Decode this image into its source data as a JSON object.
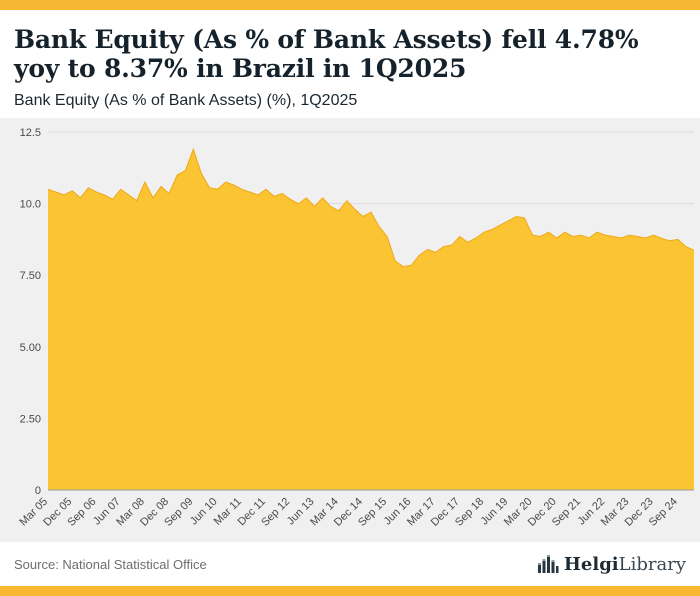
{
  "header": {
    "title": "Bank Equity (As % of Bank Assets) fell 4.78% yoy to 8.37% in Brazil in 1Q2025",
    "subtitle": "Bank Equity (As % of Bank Assets) (%), 1Q2025"
  },
  "footer": {
    "source": "Source: National Statistical Office",
    "logo_bold": "Helgi",
    "logo_light": "Library",
    "logo_icon": "bar-chart-building-icon"
  },
  "colors": {
    "accent_gold": "#F7B733",
    "area_fill": "#FAC433",
    "area_edge": "#EFA817",
    "chart_bg": "#F0F0F0",
    "grid": "#DCDCDC",
    "baseline": "#9A9A9A",
    "title_text": "#15222B",
    "axis_text": "#4A4A4A",
    "source_text": "#6E6E6E"
  },
  "chart_data": {
    "type": "area",
    "title": "Bank Equity (As % of Bank Assets) fell 4.78% yoy to 8.37% in Brazil in 1Q2025",
    "subtitle": "Bank Equity (As % of Bank Assets) (%), 1Q2025",
    "ylabel": "",
    "xlabel": "",
    "ylim": [
      0,
      12.5
    ],
    "yticks": [
      0,
      2.5,
      5,
      7.5,
      10,
      12.5
    ],
    "ytick_labels": [
      "0",
      "2.50",
      "5.00",
      "7.50",
      "10.0",
      "12.5"
    ],
    "grid": true,
    "legend": "none",
    "tick_every": 3,
    "x_ticks": [
      "Mar 05",
      "Dec 05",
      "Sep 06",
      "Jun 07",
      "Mar 08",
      "Dec 08",
      "Sep 09",
      "Jun 10",
      "Mar 11",
      "Dec 11",
      "Sep 12",
      "Jun 13",
      "Mar 14",
      "Dec 14",
      "Sep 15",
      "Jun 16",
      "Mar 17",
      "Dec 17",
      "Sep 18",
      "Jun 19",
      "Mar 20",
      "Dec 20",
      "Sep 21",
      "Jun 22",
      "Mar 23",
      "Dec 23",
      "Sep 24"
    ],
    "x_full": [
      "Mar 05",
      "Jun 05",
      "Sep 05",
      "Dec 05",
      "Mar 06",
      "Jun 06",
      "Sep 06",
      "Dec 06",
      "Mar 07",
      "Jun 07",
      "Sep 07",
      "Dec 07",
      "Mar 08",
      "Jun 08",
      "Sep 08",
      "Dec 08",
      "Mar 09",
      "Jun 09",
      "Sep 09",
      "Dec 09",
      "Mar 10",
      "Jun 10",
      "Sep 10",
      "Dec 10",
      "Mar 11",
      "Jun 11",
      "Sep 11",
      "Dec 11",
      "Mar 12",
      "Jun 12",
      "Sep 12",
      "Dec 12",
      "Mar 13",
      "Jun 13",
      "Sep 13",
      "Dec 13",
      "Mar 14",
      "Jun 14",
      "Sep 14",
      "Dec 14",
      "Mar 15",
      "Jun 15",
      "Sep 15",
      "Dec 15",
      "Mar 16",
      "Jun 16",
      "Sep 16",
      "Dec 16",
      "Mar 17",
      "Jun 17",
      "Sep 17",
      "Dec 17",
      "Mar 18",
      "Jun 18",
      "Sep 18",
      "Dec 18",
      "Mar 19",
      "Jun 19",
      "Sep 19",
      "Dec 19",
      "Mar 20",
      "Jun 20",
      "Sep 20",
      "Dec 20",
      "Mar 21",
      "Jun 21",
      "Sep 21",
      "Dec 21",
      "Mar 22",
      "Jun 22",
      "Sep 22",
      "Dec 22",
      "Mar 23",
      "Jun 23",
      "Sep 23",
      "Dec 23",
      "Mar 24",
      "Jun 24",
      "Sep 24",
      "Dec 24",
      "Mar 25"
    ],
    "values": [
      10.5,
      10.4,
      10.3,
      10.45,
      10.2,
      10.55,
      10.4,
      10.3,
      10.15,
      10.5,
      10.3,
      10.1,
      10.75,
      10.2,
      10.6,
      10.35,
      11.0,
      11.15,
      11.9,
      11.05,
      10.55,
      10.5,
      10.75,
      10.65,
      10.5,
      10.4,
      10.3,
      10.5,
      10.25,
      10.35,
      10.15,
      10.0,
      10.2,
      9.9,
      10.2,
      9.9,
      9.75,
      10.1,
      9.8,
      9.55,
      9.7,
      9.2,
      8.85,
      8.0,
      7.8,
      7.85,
      8.2,
      8.4,
      8.3,
      8.5,
      8.55,
      8.85,
      8.65,
      8.8,
      9.0,
      9.1,
      9.25,
      9.4,
      9.55,
      9.5,
      8.9,
      8.85,
      9.0,
      8.8,
      9.0,
      8.85,
      8.9,
      8.8,
      9.0,
      8.9,
      8.85,
      8.8,
      8.9,
      8.85,
      8.8,
      8.9,
      8.79,
      8.7,
      8.75,
      8.5,
      8.37
    ]
  }
}
